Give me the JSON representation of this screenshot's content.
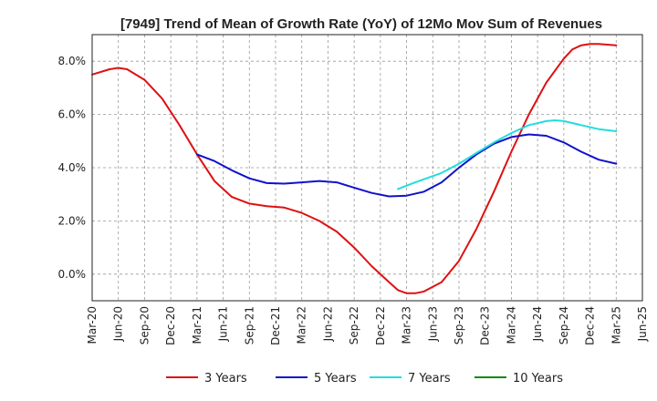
{
  "chart_data": {
    "type": "line",
    "title": "[7949]  Trend of Mean of Growth Rate (YoY) of 12Mo Mov Sum of Revenues",
    "xlabel": "",
    "ylabel": "",
    "ylim": [
      -1.0,
      9.0
    ],
    "y_ticks": [
      0,
      2,
      4,
      6,
      8
    ],
    "y_tick_labels": [
      "0.0%",
      "2.0%",
      "4.0%",
      "6.0%",
      "8.0%"
    ],
    "x_tick_labels": [
      "Mar-20",
      "Jun-20",
      "Sep-20",
      "Dec-20",
      "Mar-21",
      "Jun-21",
      "Sep-21",
      "Dec-21",
      "Mar-22",
      "Jun-22",
      "Sep-22",
      "Dec-22",
      "Mar-23",
      "Jun-23",
      "Sep-23",
      "Dec-23",
      "Mar-24",
      "Jun-24",
      "Sep-24",
      "Dec-24",
      "Mar-25",
      "Jun-25"
    ],
    "grid": true,
    "legend_position": "bottom",
    "series": [
      {
        "name": "3 Years",
        "color": "#dd1111",
        "points": [
          [
            0,
            7.5
          ],
          [
            2,
            7.7
          ],
          [
            3,
            7.75
          ],
          [
            4,
            7.7
          ],
          [
            6,
            7.3
          ],
          [
            8,
            6.6
          ],
          [
            10,
            5.6
          ],
          [
            12,
            4.5
          ],
          [
            14,
            3.5
          ],
          [
            16,
            2.9
          ],
          [
            18,
            2.65
          ],
          [
            20,
            2.55
          ],
          [
            22,
            2.5
          ],
          [
            24,
            2.3
          ],
          [
            26,
            2.0
          ],
          [
            28,
            1.6
          ],
          [
            30,
            1.0
          ],
          [
            32,
            0.3
          ],
          [
            34,
            -0.3
          ],
          [
            35,
            -0.6
          ],
          [
            36,
            -0.72
          ],
          [
            37,
            -0.72
          ],
          [
            38,
            -0.65
          ],
          [
            40,
            -0.3
          ],
          [
            42,
            0.5
          ],
          [
            44,
            1.7
          ],
          [
            46,
            3.1
          ],
          [
            48,
            4.6
          ],
          [
            50,
            6.0
          ],
          [
            52,
            7.2
          ],
          [
            54,
            8.1
          ],
          [
            55,
            8.45
          ],
          [
            56,
            8.6
          ],
          [
            57,
            8.65
          ],
          [
            58,
            8.65
          ],
          [
            60,
            8.6
          ]
        ]
      },
      {
        "name": "5 Years",
        "color": "#1111cc",
        "points": [
          [
            12,
            4.5
          ],
          [
            14,
            4.25
          ],
          [
            16,
            3.9
          ],
          [
            18,
            3.6
          ],
          [
            20,
            3.42
          ],
          [
            22,
            3.4
          ],
          [
            24,
            3.45
          ],
          [
            26,
            3.5
          ],
          [
            28,
            3.45
          ],
          [
            30,
            3.25
          ],
          [
            32,
            3.05
          ],
          [
            34,
            2.92
          ],
          [
            36,
            2.95
          ],
          [
            38,
            3.1
          ],
          [
            40,
            3.45
          ],
          [
            42,
            4.0
          ],
          [
            44,
            4.5
          ],
          [
            46,
            4.9
          ],
          [
            48,
            5.15
          ],
          [
            50,
            5.25
          ],
          [
            52,
            5.2
          ],
          [
            54,
            4.95
          ],
          [
            56,
            4.6
          ],
          [
            58,
            4.3
          ],
          [
            60,
            4.15
          ]
        ]
      },
      {
        "name": "7 Years",
        "color": "#22dddd",
        "points": [
          [
            35,
            3.2
          ],
          [
            37,
            3.45
          ],
          [
            40,
            3.8
          ],
          [
            42,
            4.15
          ],
          [
            44,
            4.55
          ],
          [
            46,
            4.95
          ],
          [
            48,
            5.3
          ],
          [
            50,
            5.6
          ],
          [
            52,
            5.75
          ],
          [
            53,
            5.78
          ],
          [
            54,
            5.75
          ],
          [
            56,
            5.6
          ],
          [
            58,
            5.45
          ],
          [
            60,
            5.37
          ]
        ]
      },
      {
        "name": "10 Years",
        "color": "#118811",
        "points": []
      }
    ]
  }
}
